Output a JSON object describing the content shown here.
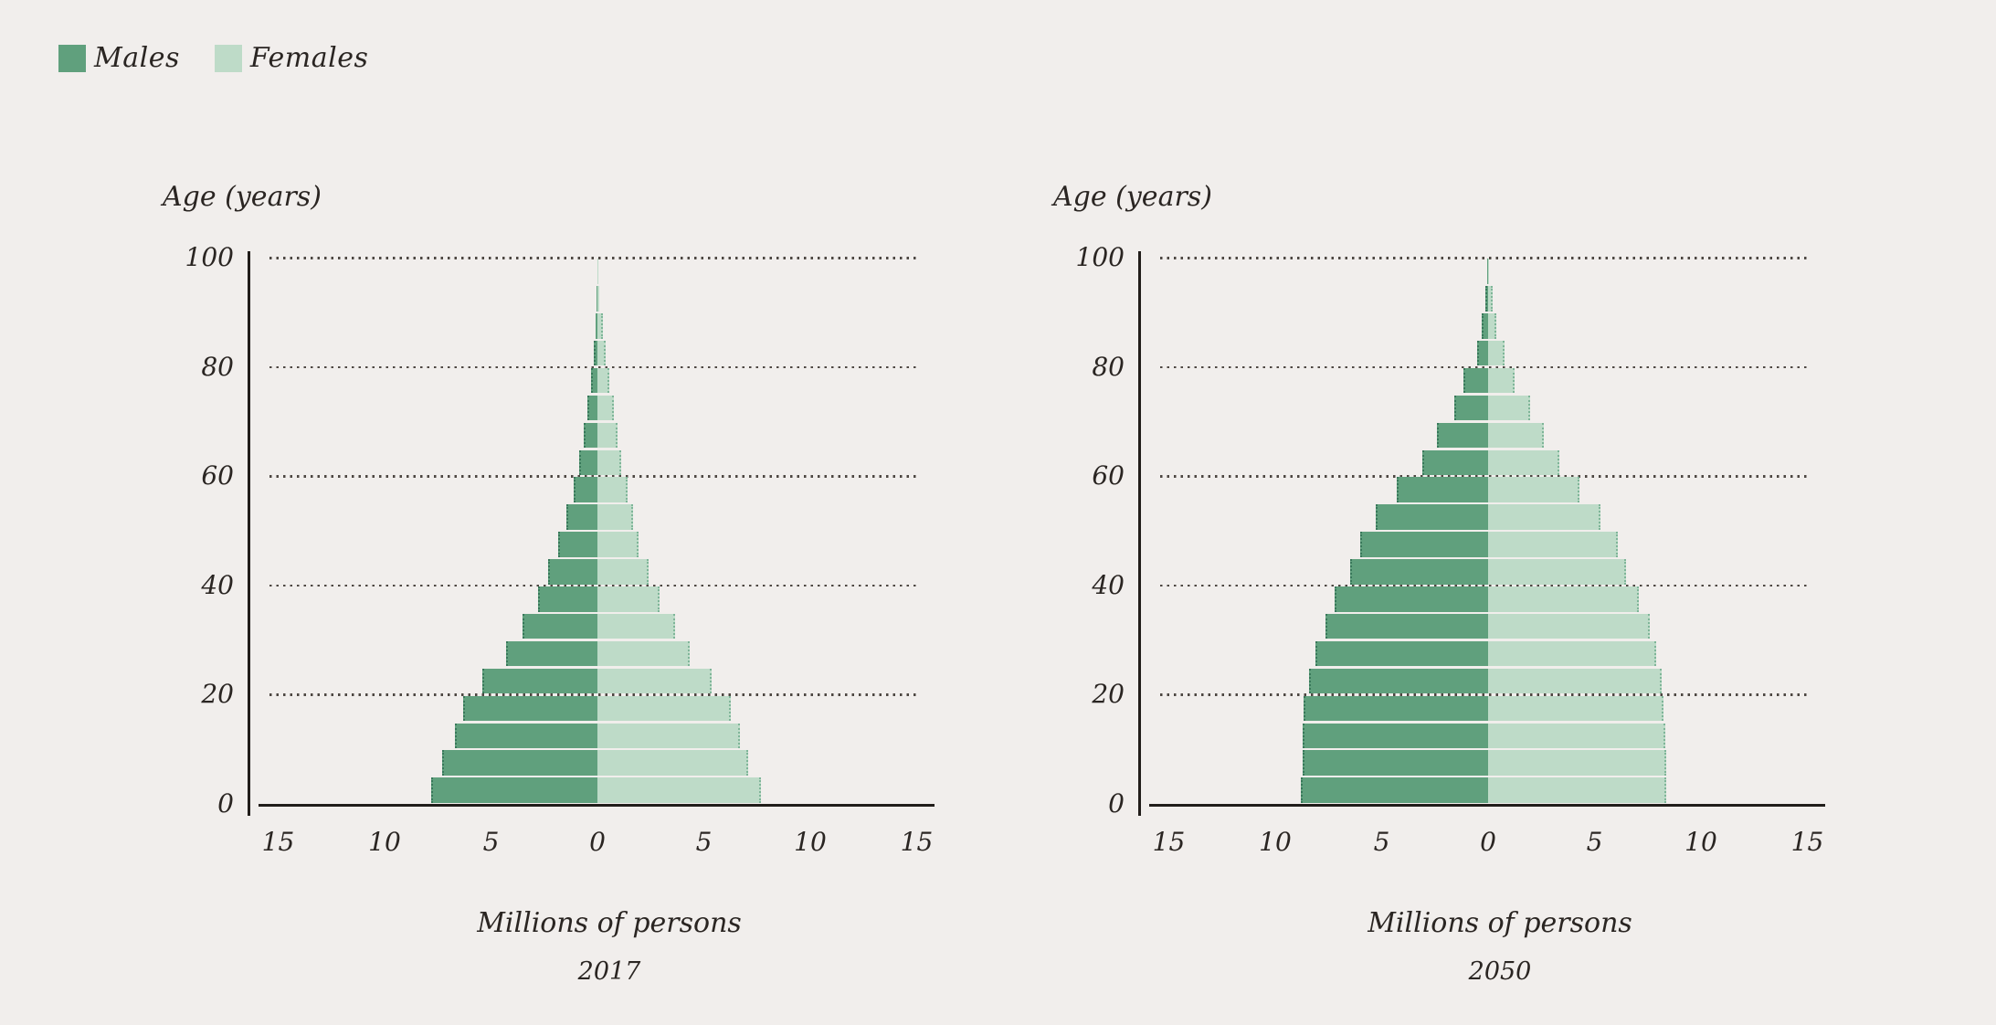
{
  "page": {
    "background_color": "#f1eeec",
    "text_color": "#2a2522",
    "axis_color": "#211d1a",
    "gridline_color": "#4d4742"
  },
  "legend": {
    "items": [
      {
        "label": "Males",
        "color": "#60a07d"
      },
      {
        "label": "Females",
        "color": "#bedbc8"
      }
    ]
  },
  "chart_data": [
    {
      "type": "bar",
      "variant": "population-pyramid",
      "title": "2017",
      "xlabel": "Millions of persons",
      "age_axis_label": "Age (years)",
      "age_bin_years": 5,
      "xlim": [
        -15,
        15
      ],
      "x_tick_labels": [
        "15",
        "10",
        "5",
        "0",
        "5",
        "10",
        "15"
      ],
      "x_tick_values": [
        -15,
        -10,
        -5,
        0,
        5,
        10,
        15
      ],
      "y_tick_labels": [
        "100",
        "80",
        "60",
        "40",
        "20",
        "0"
      ],
      "grid": "dotted-horizontal",
      "age_groups": [
        "0-4",
        "5-9",
        "10-14",
        "15-19",
        "20-24",
        "25-29",
        "30-34",
        "35-39",
        "40-44",
        "45-49",
        "50-54",
        "55-59",
        "60-64",
        "65-69",
        "70-74",
        "75-79",
        "80-84",
        "85-89",
        "90-94",
        "95-99"
      ],
      "series": [
        {
          "name": "Males",
          "side": "left",
          "color": "#60a07d",
          "values": [
            7.8,
            7.3,
            6.7,
            6.3,
            5.4,
            4.3,
            3.5,
            2.8,
            2.3,
            1.85,
            1.45,
            1.1,
            0.85,
            0.65,
            0.47,
            0.3,
            0.19,
            0.09,
            0.04,
            0.015
          ]
        },
        {
          "name": "Females",
          "side": "right",
          "color": "#bedbc8",
          "values": [
            7.6,
            7.0,
            6.6,
            6.2,
            5.3,
            4.25,
            3.55,
            2.85,
            2.3,
            1.85,
            1.6,
            1.35,
            1.05,
            0.85,
            0.67,
            0.48,
            0.3,
            0.17,
            0.09,
            0.04
          ]
        }
      ]
    },
    {
      "type": "bar",
      "variant": "population-pyramid",
      "title": "2050",
      "xlabel": "Millions of persons",
      "age_axis_label": "Age (years)",
      "age_bin_years": 5,
      "xlim": [
        -15,
        15
      ],
      "x_tick_labels": [
        "15",
        "10",
        "5",
        "0",
        "5",
        "10",
        "15"
      ],
      "x_tick_values": [
        -15,
        -10,
        -5,
        0,
        5,
        10,
        15
      ],
      "y_tick_labels": [
        "100",
        "80",
        "60",
        "40",
        "20",
        "0"
      ],
      "grid": "dotted-horizontal",
      "age_groups": [
        "0-4",
        "5-9",
        "10-14",
        "15-19",
        "20-24",
        "25-29",
        "30-34",
        "35-39",
        "40-44",
        "45-49",
        "50-54",
        "55-59",
        "60-64",
        "65-69",
        "70-74",
        "75-79",
        "80-84",
        "85-89",
        "90-94",
        "95-99"
      ],
      "series": [
        {
          "name": "Males",
          "side": "left",
          "color": "#60a07d",
          "values": [
            8.8,
            8.7,
            8.7,
            8.65,
            8.4,
            8.1,
            7.65,
            7.2,
            6.5,
            6.0,
            5.3,
            4.3,
            3.1,
            2.4,
            1.6,
            1.15,
            0.5,
            0.29,
            0.15,
            0.05
          ]
        },
        {
          "name": "Females",
          "side": "right",
          "color": "#bedbc8",
          "values": [
            8.3,
            8.3,
            8.25,
            8.15,
            8.05,
            7.8,
            7.5,
            7.0,
            6.4,
            6.0,
            5.2,
            4.2,
            3.25,
            2.55,
            1.9,
            1.15,
            0.68,
            0.31,
            0.15,
            0.05
          ]
        }
      ]
    }
  ]
}
